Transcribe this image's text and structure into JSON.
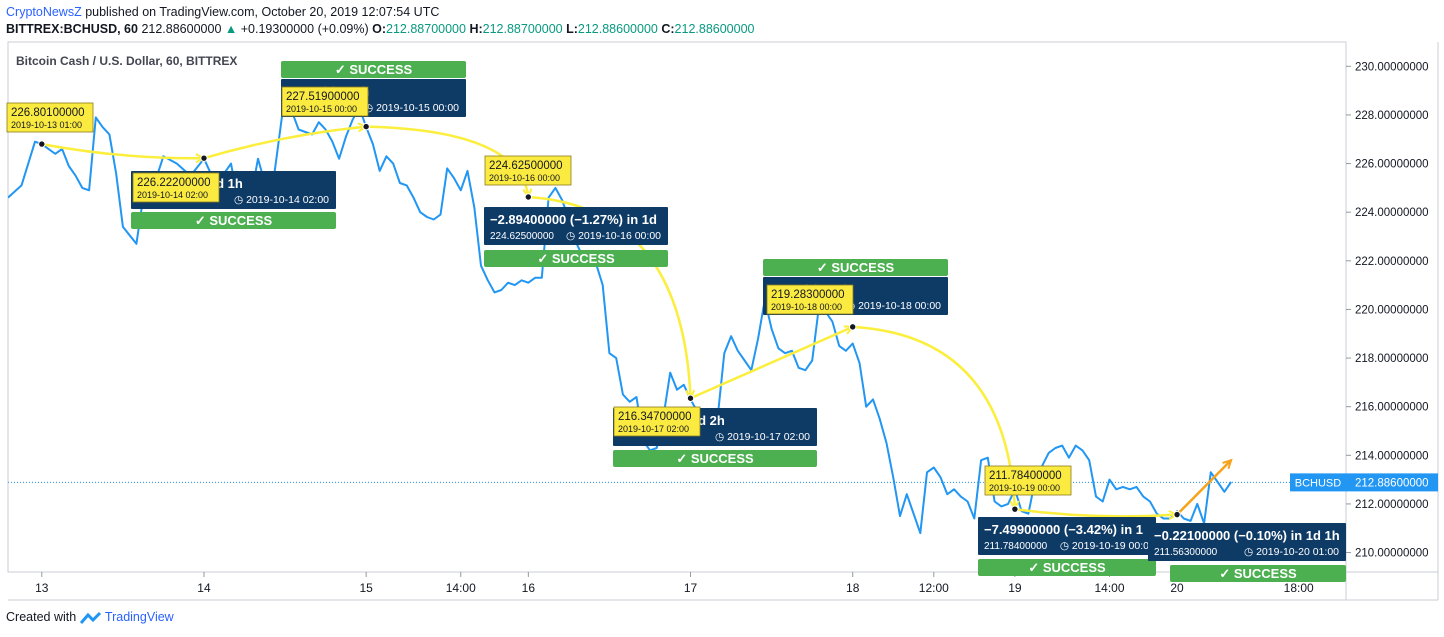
{
  "header": {
    "user": "CryptoNewsZ",
    "published": "published on TradingView.com, October 20, 2019 12:07:54 UTC",
    "symbol": "BITTREX:BCHUSD, 60",
    "last": "212.88600000",
    "change": "+0.19300000 (+0.09%)",
    "o_label": "O:",
    "o": "212.88700000",
    "h_label": "H:",
    "h": "212.88700000",
    "l_label": "L:",
    "l": "212.88600000",
    "c_label": "C:",
    "c": "212.88600000"
  },
  "footer": {
    "created": "Created with",
    "brand": "TradingView"
  },
  "colors": {
    "line": "#2196f3",
    "callout_yellow": "#fbeb41",
    "info_box": "#0e3a66",
    "success": "#4caf50",
    "arrow_yellow": "#fbee3c",
    "arrow_orange": "#f7a21b",
    "price_tag": "#2196f3"
  },
  "chart_data": {
    "type": "line",
    "title": "Bitcoin Cash / U.S. Dollar, 60, BITTREX",
    "xlabel": "",
    "ylabel": "",
    "x_tick_labels": [
      {
        "label": "13",
        "t": 0
      },
      {
        "label": "14",
        "t": 24
      },
      {
        "label": "15",
        "t": 48
      },
      {
        "label": "14:00",
        "t": 62
      },
      {
        "label": "16",
        "t": 72
      },
      {
        "label": "17",
        "t": 96
      },
      {
        "label": "18",
        "t": 120
      },
      {
        "label": "12:00",
        "t": 132
      },
      {
        "label": "19",
        "t": 144
      },
      {
        "label": "14:00",
        "t": 158
      },
      {
        "label": "20",
        "t": 168
      },
      {
        "label": "18:00",
        "t": 186
      }
    ],
    "x_range_hours": [
      -5,
      193
    ],
    "ylim": [
      209.2,
      231.0
    ],
    "y_ticks": [
      "210.00000000",
      "212.00000000",
      "214.00000000",
      "216.00000000",
      "218.00000000",
      "220.00000000",
      "222.00000000",
      "224.00000000",
      "226.00000000",
      "228.00000000",
      "230.00000000"
    ],
    "current_price": {
      "label": "BCHUSD",
      "value": "212.88600000",
      "y": 212.886
    },
    "series": [
      {
        "points": [
          [
            -5,
            224.6
          ],
          [
            -3,
            225.1
          ],
          [
            -1,
            226.9
          ],
          [
            0,
            226.8
          ],
          [
            1,
            226.6
          ],
          [
            2,
            226.4
          ],
          [
            3,
            226.6
          ],
          [
            4,
            225.9
          ],
          [
            5,
            225.5
          ],
          [
            6,
            225.0
          ],
          [
            7,
            224.9
          ],
          [
            8,
            227.9
          ],
          [
            9,
            227.5
          ],
          [
            10,
            227.2
          ],
          [
            11,
            225.6
          ],
          [
            12,
            223.4
          ],
          [
            14,
            222.7
          ],
          [
            15,
            224.6
          ],
          [
            16,
            224.6
          ],
          [
            18,
            226.3
          ],
          [
            20,
            226.0
          ],
          [
            22,
            225.5
          ],
          [
            24,
            226.2
          ],
          [
            25,
            225.6
          ],
          [
            26,
            225.2
          ],
          [
            28,
            226.0
          ],
          [
            29,
            224.5
          ],
          [
            30,
            224.3
          ],
          [
            31,
            224.7
          ],
          [
            32,
            226.2
          ],
          [
            33,
            225.2
          ],
          [
            34,
            224.7
          ],
          [
            36,
            228.9
          ],
          [
            38,
            227.4
          ],
          [
            40,
            227.2
          ],
          [
            41,
            227.7
          ],
          [
            42,
            227.4
          ],
          [
            43,
            226.9
          ],
          [
            44,
            226.2
          ],
          [
            45,
            227.1
          ],
          [
            46,
            227.8
          ],
          [
            47,
            228.3
          ],
          [
            48,
            227.5
          ],
          [
            49,
            226.8
          ],
          [
            50,
            225.7
          ],
          [
            51,
            226.3
          ],
          [
            52,
            226.0
          ],
          [
            53,
            225.2
          ],
          [
            54,
            225.1
          ],
          [
            55,
            224.6
          ],
          [
            56,
            224.0
          ],
          [
            57,
            223.8
          ],
          [
            58,
            223.7
          ],
          [
            59,
            223.9
          ],
          [
            60,
            225.8
          ],
          [
            61,
            225.4
          ],
          [
            62,
            224.9
          ],
          [
            63,
            225.7
          ],
          [
            64,
            224.2
          ],
          [
            65,
            221.8
          ],
          [
            66,
            221.2
          ],
          [
            67,
            220.7
          ],
          [
            68,
            220.8
          ],
          [
            69,
            221.1
          ],
          [
            70,
            221.0
          ],
          [
            71,
            221.2
          ],
          [
            72,
            221.1
          ],
          [
            73,
            221.3
          ],
          [
            74,
            221.3
          ],
          [
            75,
            224.6
          ],
          [
            76,
            225.0
          ],
          [
            77,
            224.5
          ],
          [
            78,
            223.7
          ],
          [
            79,
            222.8
          ],
          [
            80,
            222.2
          ],
          [
            82,
            221.9
          ],
          [
            83,
            221.0
          ],
          [
            84,
            218.2
          ],
          [
            85,
            218.0
          ],
          [
            86,
            216.5
          ],
          [
            87,
            216.2
          ],
          [
            88,
            216.4
          ],
          [
            89,
            214.6
          ],
          [
            90,
            214.2
          ],
          [
            91,
            214.3
          ],
          [
            92,
            215.6
          ],
          [
            93,
            217.4
          ],
          [
            94,
            216.7
          ],
          [
            95,
            216.9
          ],
          [
            96,
            216.3
          ],
          [
            97,
            215.8
          ],
          [
            98,
            215.2
          ],
          [
            99,
            214.9
          ],
          [
            100,
            215.5
          ],
          [
            101,
            218.2
          ],
          [
            102,
            218.9
          ],
          [
            103,
            218.3
          ],
          [
            104,
            217.9
          ],
          [
            105,
            217.5
          ],
          [
            106,
            218.8
          ],
          [
            107,
            220.4
          ],
          [
            108,
            219.2
          ],
          [
            109,
            218.4
          ],
          [
            110,
            218.2
          ],
          [
            111,
            218.3
          ],
          [
            112,
            217.6
          ],
          [
            113,
            217.5
          ],
          [
            114,
            217.9
          ],
          [
            115,
            220.1
          ],
          [
            116,
            219.9
          ],
          [
            117,
            219.5
          ],
          [
            118,
            218.5
          ],
          [
            119,
            218.3
          ],
          [
            120,
            218.6
          ],
          [
            121,
            217.8
          ],
          [
            122,
            216.0
          ],
          [
            123,
            216.3
          ],
          [
            124,
            215.5
          ],
          [
            125,
            214.5
          ],
          [
            126,
            213.1
          ],
          [
            127,
            211.5
          ],
          [
            128,
            212.4
          ],
          [
            130,
            210.8
          ],
          [
            131,
            213.3
          ],
          [
            132,
            213.5
          ],
          [
            133,
            213.1
          ],
          [
            134,
            212.4
          ],
          [
            135,
            212.6
          ],
          [
            136,
            212.3
          ],
          [
            137,
            212.1
          ],
          [
            138,
            211.4
          ],
          [
            139,
            213.8
          ],
          [
            140,
            213.9
          ],
          [
            141,
            212.1
          ],
          [
            142,
            211.9
          ],
          [
            143,
            212.0
          ],
          [
            144,
            212.6
          ],
          [
            145,
            211.7
          ],
          [
            146,
            211.6
          ],
          [
            147,
            213.0
          ],
          [
            149,
            214.1
          ],
          [
            150,
            214.3
          ],
          [
            151,
            214.4
          ],
          [
            152,
            213.9
          ],
          [
            153,
            214.4
          ],
          [
            154,
            214.2
          ],
          [
            155,
            213.8
          ],
          [
            156,
            212.3
          ],
          [
            157,
            212.1
          ],
          [
            158,
            213.0
          ],
          [
            159,
            212.6
          ],
          [
            160,
            212.7
          ],
          [
            161,
            212.6
          ],
          [
            162,
            212.7
          ],
          [
            163,
            212.3
          ],
          [
            164,
            212.1
          ],
          [
            165,
            211.6
          ],
          [
            166,
            211.4
          ],
          [
            167,
            211.4
          ],
          [
            168,
            211.7
          ],
          [
            169,
            211.4
          ],
          [
            170,
            211.3
          ],
          [
            171,
            212.0
          ],
          [
            172,
            211.2
          ],
          [
            173,
            213.3
          ],
          [
            174,
            212.9
          ],
          [
            175,
            212.5
          ],
          [
            176,
            212.9
          ]
        ]
      }
    ],
    "projections": [
      {
        "from": [
          0,
          226.801
        ],
        "to": [
          24,
          226.222
        ],
        "start_label": {
          "price": "226.80100000",
          "date": "2019-10-13 01:00"
        },
        "end_label": {
          "price": "226.22200000",
          "date": "2019-10-14 02:00"
        },
        "info_change": "(−0.26%) in 1d 1h",
        "info_date": "2019-10-14  02:00",
        "success": "✓ SUCCESS",
        "success_pos": "below"
      },
      {
        "from": [
          24,
          226.222
        ],
        "to": [
          48,
          227.519
        ],
        "start_label": null,
        "end_label": {
          "price": "227.51900000",
          "date": "2019-10-15 00:00"
        },
        "info_change": "0.57%) in 22h",
        "info_date": "2019-10-15  00:00",
        "success": "✓ SUCCESS",
        "success_pos": "above"
      },
      {
        "from": [
          48,
          227.519
        ],
        "to": [
          72,
          224.625
        ],
        "start_label": null,
        "end_label": {
          "price": "224.62500000",
          "date": "2019-10-16 00:00"
        },
        "info_change": "−2.89400000 (−1.27%) in 1d",
        "info_sub_price": "224.62500000",
        "info_date": "2019-10-16  00:00",
        "success": "✓ SUCCESS",
        "success_pos": "below"
      },
      {
        "from": [
          72,
          224.625
        ],
        "to": [
          96,
          216.347
        ],
        "start_label": null,
        "end_label": {
          "price": "216.34700000",
          "date": "2019-10-17 02:00"
        },
        "info_change": "(−3.69%) in 1d 2h",
        "info_date": "2019-10-17  02:00",
        "success": "✓ SUCCESS",
        "success_pos": "below"
      },
      {
        "from": [
          96,
          216.347
        ],
        "to": [
          120,
          219.283
        ],
        "start_label": null,
        "end_label": {
          "price": "219.28300000",
          "date": "2019-10-18 00:00"
        },
        "info_change": "1.36%) in 22h",
        "info_date": "2019-10-18  00:00",
        "success": "✓ SUCCESS",
        "success_pos": "above"
      },
      {
        "from": [
          120,
          219.283
        ],
        "to": [
          144,
          211.784
        ],
        "start_label": null,
        "end_label": {
          "price": "211.78400000",
          "date": "2019-10-19 00:00"
        },
        "info_change": "−7.49900000 (−3.42%) in 1",
        "info_sub_price": "211.78400000",
        "info_date": "2019-10-19  00:0",
        "success": "✓ SUCCESS",
        "success_pos": "below"
      },
      {
        "from": [
          144,
          211.784
        ],
        "to": [
          168,
          211.563
        ],
        "start_label": null,
        "end_label": null,
        "info_change": "−0.22100000 (−0.10%) in 1d 1h",
        "info_sub_price": "211.56300000",
        "info_date": "2019-10-20  01:00",
        "success": "✓ SUCCESS",
        "success_pos": "below"
      }
    ],
    "forecast_arrow": {
      "from": [
        168,
        211.563
      ],
      "to": [
        176,
        213.8
      ]
    }
  }
}
